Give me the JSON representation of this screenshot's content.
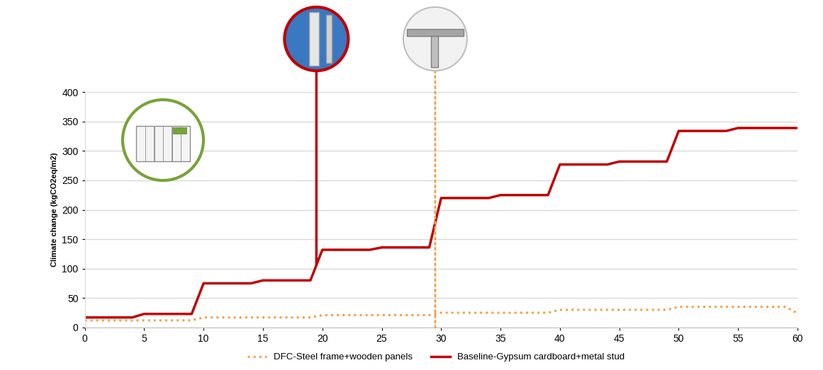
{
  "chart_data": {
    "type": "line",
    "y_label": "Climate change (kgCO2eq/m2)",
    "xlim": [
      0,
      60
    ],
    "xticks": [
      0,
      5,
      10,
      15,
      20,
      25,
      30,
      35,
      40,
      45,
      50,
      55,
      60
    ],
    "ylim": [
      0,
      400
    ],
    "yticks": [
      0,
      50,
      100,
      150,
      200,
      250,
      300,
      350,
      400
    ],
    "grid": true,
    "legend": "lower center",
    "series": [
      {
        "name": "DFC-Steel frame+wooden panels",
        "color": "#f5a04a",
        "line_style": "dotted",
        "x": [
          0,
          9,
          10,
          19,
          20,
          29,
          30,
          39,
          40,
          49,
          50,
          59,
          60
        ],
        "values": [
          12,
          12,
          17,
          17,
          21,
          21,
          25,
          25,
          30,
          30,
          35,
          35,
          24
        ]
      },
      {
        "name": "Baseline-Gypsum cardboard+metal stud",
        "color": "#c00000",
        "line_style": "solid",
        "x": [
          0,
          4,
          5,
          9,
          10,
          14,
          15,
          19,
          20,
          24,
          25,
          29,
          30,
          34,
          35,
          39,
          40,
          44,
          45,
          49,
          50,
          54,
          55,
          60
        ],
        "values": [
          17,
          17,
          23,
          23,
          75,
          75,
          80,
          80,
          132,
          132,
          136,
          136,
          220,
          220,
          225,
          225,
          277,
          277,
          282,
          282,
          334,
          334,
          339,
          339
        ]
      }
    ]
  }
}
